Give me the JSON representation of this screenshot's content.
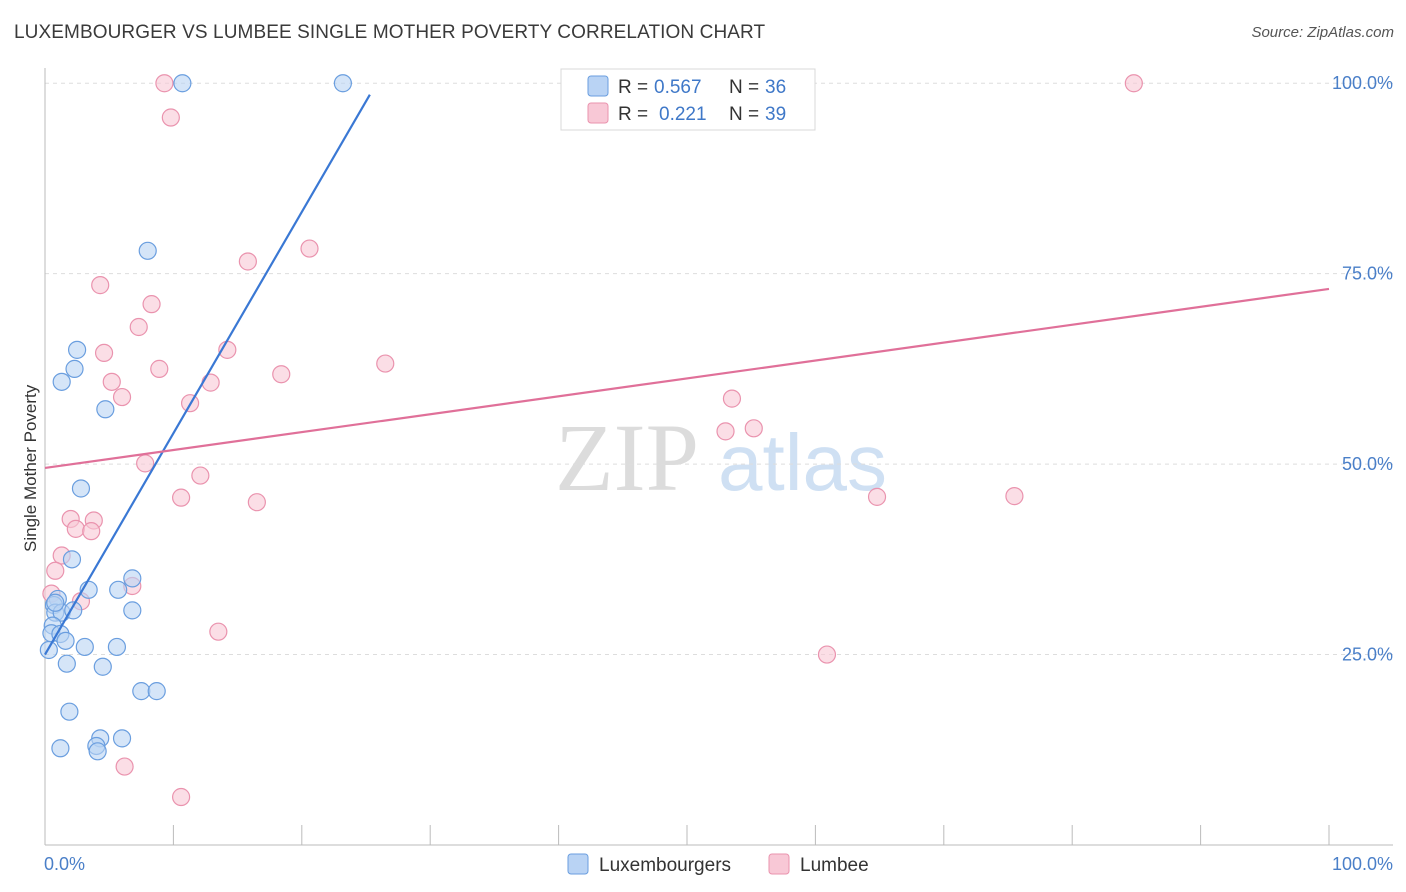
{
  "header": {
    "title": "LUXEMBOURGER VS LUMBEE SINGLE MOTHER POVERTY CORRELATION CHART",
    "source": "Source: ZipAtlas.com"
  },
  "watermark": {
    "zip": "ZIP",
    "atlas": "atlas"
  },
  "colors": {
    "blue_fill": "#b9d3f4",
    "blue_stroke": "#6a9edf",
    "blue_line": "#3a78d4",
    "pink_fill": "#f8c8d6",
    "pink_stroke": "#ea93ae",
    "pink_line": "#e07099",
    "tick": "#4a7fc8",
    "grid": "#dddddd"
  },
  "legend": {
    "rows": [
      {
        "r_label": "R =",
        "r_value": "0.567",
        "n_label": "N =",
        "n_value": "36"
      },
      {
        "r_label": "R =",
        "r_value": "0.221",
        "n_label": "N =",
        "n_value": "39"
      }
    ]
  },
  "chart_data": {
    "type": "scatter",
    "title": "LUXEMBOURGER VS LUMBEE SINGLE MOTHER POVERTY CORRELATION CHART",
    "xlabel": "",
    "ylabel": "Single Mother Poverty",
    "xlim": [
      0,
      100
    ],
    "ylim": [
      0,
      102
    ],
    "x_tick_labels": [
      "0.0%",
      "100.0%"
    ],
    "y_ticks": [
      25,
      50,
      75,
      100
    ],
    "y_tick_labels": [
      "25.0%",
      "50.0%",
      "75.0%",
      "100.0%"
    ],
    "grid": true,
    "legend_position": "top-center",
    "series": [
      {
        "name": "Luxembourgers",
        "r": 0.567,
        "n": 36,
        "trend": {
          "x": [
            0,
            25.3
          ],
          "y": [
            25,
            98.5
          ]
        },
        "points": [
          [
            10.7,
            100
          ],
          [
            23.2,
            100
          ],
          [
            8,
            78
          ],
          [
            2.5,
            65
          ],
          [
            2.3,
            62.5
          ],
          [
            1.3,
            60.8
          ],
          [
            4.7,
            57.2
          ],
          [
            2.8,
            46.8
          ],
          [
            2.1,
            37.5
          ],
          [
            6.8,
            35
          ],
          [
            5.7,
            33.5
          ],
          [
            3.4,
            33.5
          ],
          [
            1,
            32.3
          ],
          [
            0.7,
            31.5
          ],
          [
            0.8,
            30.5
          ],
          [
            1.3,
            30.5
          ],
          [
            2.2,
            30.8
          ],
          [
            6.8,
            30.8
          ],
          [
            0.6,
            28.8
          ],
          [
            0.5,
            27.8
          ],
          [
            1.2,
            27.7
          ],
          [
            1.6,
            26.8
          ],
          [
            3.1,
            26
          ],
          [
            5.6,
            26
          ],
          [
            0.3,
            25.6
          ],
          [
            1.7,
            23.8
          ],
          [
            4.5,
            23.4
          ],
          [
            7.5,
            20.2
          ],
          [
            8.7,
            20.2
          ],
          [
            1.9,
            17.5
          ],
          [
            4.3,
            14
          ],
          [
            6,
            14
          ],
          [
            4,
            13
          ],
          [
            1.2,
            12.7
          ],
          [
            4.1,
            12.3
          ],
          [
            0.8,
            31.8
          ]
        ]
      },
      {
        "name": "Lumbee",
        "r": 0.221,
        "n": 39,
        "trend": {
          "x": [
            0,
            100
          ],
          "y": [
            49.5,
            73
          ]
        },
        "points": [
          [
            9.3,
            100
          ],
          [
            84.8,
            100
          ],
          [
            9.8,
            95.5
          ],
          [
            20.6,
            78.3
          ],
          [
            15.8,
            76.6
          ],
          [
            4.3,
            73.5
          ],
          [
            8.3,
            71
          ],
          [
            7.3,
            68
          ],
          [
            14.2,
            65
          ],
          [
            4.6,
            64.6
          ],
          [
            8.9,
            62.5
          ],
          [
            18.4,
            61.8
          ],
          [
            26.5,
            63.2
          ],
          [
            5.2,
            60.8
          ],
          [
            12.9,
            60.7
          ],
          [
            6,
            58.8
          ],
          [
            11.3,
            58
          ],
          [
            53,
            54.3
          ],
          [
            55.2,
            54.7
          ],
          [
            53.5,
            58.6
          ],
          [
            7.8,
            50.1
          ],
          [
            12.1,
            48.5
          ],
          [
            64.8,
            45.7
          ],
          [
            75.5,
            45.8
          ],
          [
            10.6,
            45.6
          ],
          [
            16.5,
            45
          ],
          [
            2,
            42.8
          ],
          [
            3.8,
            42.6
          ],
          [
            2.4,
            41.5
          ],
          [
            3.6,
            41.2
          ],
          [
            1.3,
            38
          ],
          [
            0.8,
            36
          ],
          [
            0.5,
            33
          ],
          [
            2.8,
            32
          ],
          [
            6.8,
            34
          ],
          [
            13.5,
            28
          ],
          [
            60.9,
            25
          ],
          [
            6.2,
            10.3
          ],
          [
            10.6,
            6.3
          ]
        ]
      }
    ]
  },
  "bottom_legend": {
    "items": [
      "Luxembourgers",
      "Lumbee"
    ]
  }
}
